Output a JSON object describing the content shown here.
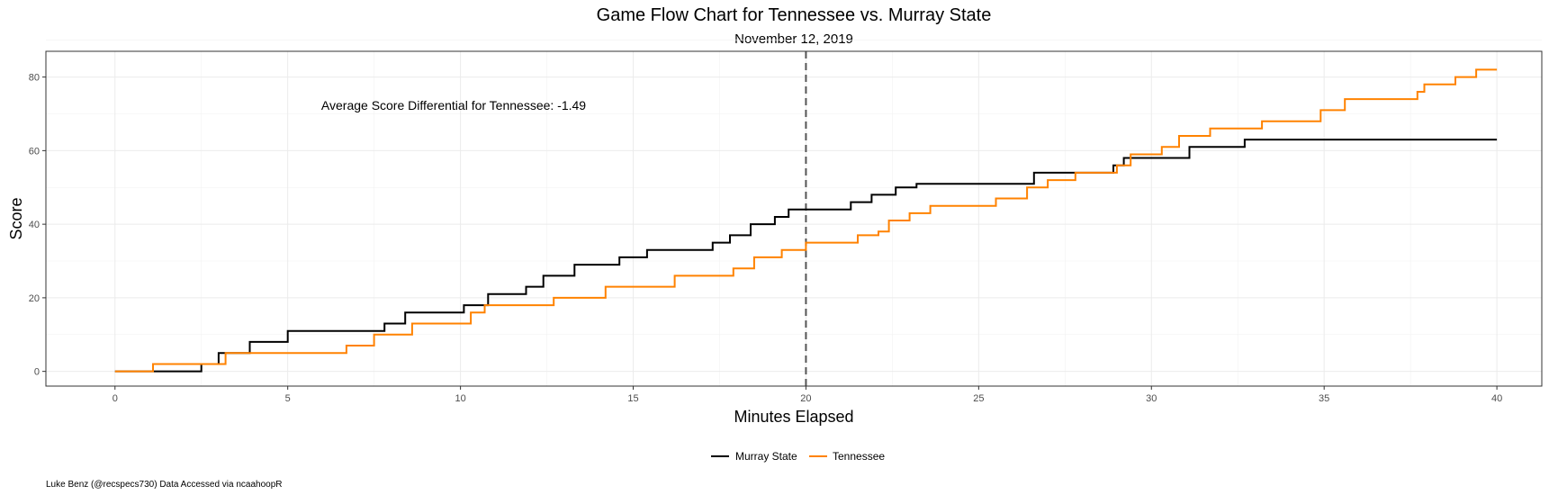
{
  "chart_data": {
    "type": "line",
    "step": true,
    "title": "Game Flow Chart for Tennessee vs. Murray State",
    "subtitle": "November 12, 2019",
    "xlabel": "Minutes Elapsed",
    "ylabel": "Score",
    "xlim": [
      -2,
      41.3
    ],
    "ylim": [
      -4,
      87
    ],
    "xticks": [
      0,
      5,
      10,
      15,
      20,
      25,
      30,
      35,
      40
    ],
    "yticks": [
      0,
      20,
      40,
      60,
      80
    ],
    "grid": true,
    "halftime_line": 20,
    "annotation": "Average Score Differential for Tennessee: -1.49",
    "legend_position": "bottom",
    "caption": "Luke Benz (@recspecs730) Data Accessed via ncaahoopR",
    "series": [
      {
        "name": "Murray State",
        "color": "#000000",
        "points": [
          [
            0,
            0
          ],
          [
            2.5,
            0
          ],
          [
            2.5,
            2
          ],
          [
            3.0,
            2
          ],
          [
            3.0,
            5
          ],
          [
            3.9,
            5
          ],
          [
            3.9,
            8
          ],
          [
            5.0,
            8
          ],
          [
            5.0,
            11
          ],
          [
            7.8,
            11
          ],
          [
            7.8,
            13
          ],
          [
            8.4,
            13
          ],
          [
            8.4,
            16
          ],
          [
            10.1,
            16
          ],
          [
            10.1,
            18
          ],
          [
            10.8,
            18
          ],
          [
            10.8,
            21
          ],
          [
            11.9,
            21
          ],
          [
            11.9,
            23
          ],
          [
            12.4,
            23
          ],
          [
            12.4,
            26
          ],
          [
            13.3,
            26
          ],
          [
            13.3,
            29
          ],
          [
            14.6,
            29
          ],
          [
            14.6,
            31
          ],
          [
            15.4,
            31
          ],
          [
            15.4,
            33
          ],
          [
            17.3,
            33
          ],
          [
            17.3,
            35
          ],
          [
            17.8,
            35
          ],
          [
            17.8,
            37
          ],
          [
            18.4,
            37
          ],
          [
            18.4,
            40
          ],
          [
            19.1,
            40
          ],
          [
            19.1,
            42
          ],
          [
            19.5,
            42
          ],
          [
            19.5,
            44
          ],
          [
            21.3,
            44
          ],
          [
            21.3,
            46
          ],
          [
            21.9,
            46
          ],
          [
            21.9,
            48
          ],
          [
            22.6,
            48
          ],
          [
            22.6,
            50
          ],
          [
            23.2,
            50
          ],
          [
            23.2,
            51
          ],
          [
            26.6,
            51
          ],
          [
            26.6,
            54
          ],
          [
            28.9,
            54
          ],
          [
            28.9,
            56
          ],
          [
            29.2,
            56
          ],
          [
            29.2,
            58
          ],
          [
            31.1,
            58
          ],
          [
            31.1,
            61
          ],
          [
            32.7,
            61
          ],
          [
            32.7,
            63
          ],
          [
            40,
            63
          ]
        ]
      },
      {
        "name": "Tennessee",
        "color": "#ff8200",
        "points": [
          [
            0,
            0
          ],
          [
            1.1,
            0
          ],
          [
            1.1,
            2
          ],
          [
            3.2,
            2
          ],
          [
            3.2,
            5
          ],
          [
            6.7,
            5
          ],
          [
            6.7,
            7
          ],
          [
            7.5,
            7
          ],
          [
            7.5,
            10
          ],
          [
            8.6,
            10
          ],
          [
            8.6,
            13
          ],
          [
            10.3,
            13
          ],
          [
            10.3,
            16
          ],
          [
            10.7,
            16
          ],
          [
            10.7,
            18
          ],
          [
            12.7,
            18
          ],
          [
            12.7,
            20
          ],
          [
            14.2,
            20
          ],
          [
            14.2,
            23
          ],
          [
            16.2,
            23
          ],
          [
            16.2,
            26
          ],
          [
            17.9,
            26
          ],
          [
            17.9,
            28
          ],
          [
            18.5,
            28
          ],
          [
            18.5,
            31
          ],
          [
            19.3,
            31
          ],
          [
            19.3,
            33
          ],
          [
            20.0,
            33
          ],
          [
            20.0,
            35
          ],
          [
            21.5,
            35
          ],
          [
            21.5,
            37
          ],
          [
            22.1,
            37
          ],
          [
            22.1,
            38
          ],
          [
            22.4,
            38
          ],
          [
            22.4,
            41
          ],
          [
            23.0,
            41
          ],
          [
            23.0,
            43
          ],
          [
            23.6,
            43
          ],
          [
            23.6,
            45
          ],
          [
            25.5,
            45
          ],
          [
            25.5,
            47
          ],
          [
            26.4,
            47
          ],
          [
            26.4,
            50
          ],
          [
            27.0,
            50
          ],
          [
            27.0,
            52
          ],
          [
            27.8,
            52
          ],
          [
            27.8,
            54
          ],
          [
            29.0,
            54
          ],
          [
            29.0,
            56
          ],
          [
            29.4,
            56
          ],
          [
            29.4,
            59
          ],
          [
            30.3,
            59
          ],
          [
            30.3,
            61
          ],
          [
            30.8,
            61
          ],
          [
            30.8,
            64
          ],
          [
            31.7,
            64
          ],
          [
            31.7,
            66
          ],
          [
            33.2,
            66
          ],
          [
            33.2,
            68
          ],
          [
            34.9,
            68
          ],
          [
            34.9,
            71
          ],
          [
            35.6,
            71
          ],
          [
            35.6,
            74
          ],
          [
            37.7,
            74
          ],
          [
            37.7,
            76
          ],
          [
            37.9,
            76
          ],
          [
            37.9,
            78
          ],
          [
            38.8,
            78
          ],
          [
            38.8,
            80
          ],
          [
            39.4,
            80
          ],
          [
            39.4,
            82
          ],
          [
            40,
            82
          ]
        ]
      }
    ]
  }
}
